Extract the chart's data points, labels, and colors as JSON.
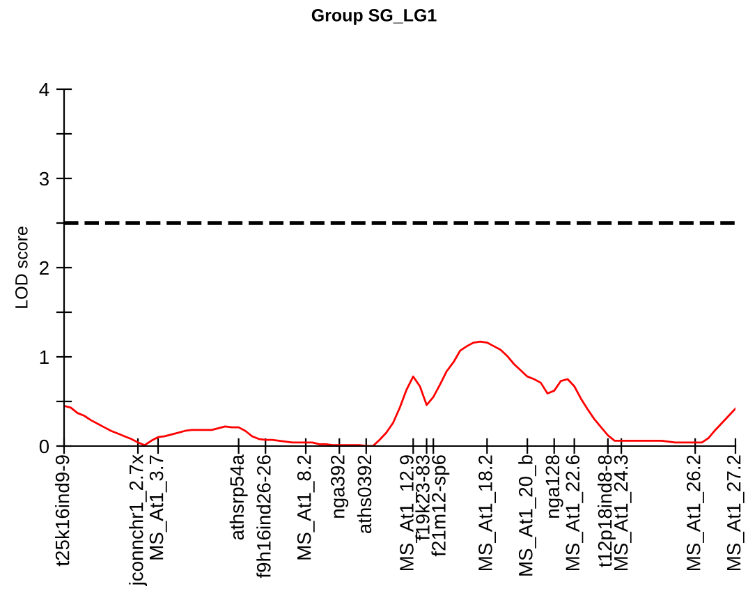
{
  "chart_data": {
    "type": "line",
    "title": "Group SG_LG1",
    "ylabel": "LOD score",
    "categories": [
      "t25k16ind9-9",
      null,
      null,
      null,
      null,
      null,
      null,
      null,
      null,
      null,
      null,
      "jconnchr1_2.7x",
      null,
      null,
      "MS_At1_3.7",
      null,
      null,
      null,
      null,
      null,
      null,
      null,
      null,
      null,
      null,
      null,
      "athsrp54a",
      null,
      null,
      null,
      "f9h16ind26-26",
      null,
      null,
      null,
      null,
      null,
      "MS_At1_8.2",
      null,
      null,
      null,
      null,
      "nga392",
      null,
      null,
      null,
      "aths0392",
      null,
      null,
      null,
      null,
      null,
      null,
      "MS_At1_12.9",
      null,
      "f19k23-83",
      "f21m12-sp6",
      null,
      null,
      null,
      null,
      null,
      null,
      null,
      "MS_At1_18.2",
      null,
      null,
      null,
      null,
      null,
      "MS_At1_20_b",
      null,
      null,
      null,
      "nga128",
      null,
      null,
      "MS_At1_22.6",
      null,
      null,
      null,
      null,
      "t12p18ind8-8",
      null,
      "MS_At1_24.3",
      null,
      null,
      null,
      null,
      null,
      null,
      null,
      null,
      null,
      null,
      "MS_At1_26.2",
      null,
      null,
      null,
      null,
      null,
      "MS_At1_27.2"
    ],
    "ylim": [
      0,
      4
    ],
    "yticks": [
      0,
      {
        "value": 0.5,
        "label": null
      },
      1,
      {
        "value": 1.5,
        "label": null
      },
      2,
      {
        "value": 2.5,
        "label": null
      },
      3,
      {
        "value": 3.5,
        "label": null
      },
      4
    ],
    "grid": false,
    "legend": false,
    "marker": "none",
    "line_style": "solid",
    "ref_lines": [
      {
        "axis": "y",
        "value": 2.5,
        "label": null,
        "color": "#000000",
        "line_style": "dashed"
      }
    ],
    "series": [
      {
        "color": "#ff0000",
        "values": [
          0.45,
          0.43,
          0.37,
          0.34,
          0.29,
          0.25,
          0.21,
          0.17,
          0.14,
          0.11,
          0.08,
          0.04,
          0.01,
          0.06,
          0.1,
          0.11,
          0.13,
          0.15,
          0.17,
          0.18,
          0.18,
          0.18,
          0.18,
          0.2,
          0.22,
          0.21,
          0.21,
          0.17,
          0.11,
          0.08,
          0.07,
          0.07,
          0.06,
          0.05,
          0.04,
          0.04,
          0.04,
          0.04,
          0.02,
          0.02,
          0.01,
          0.01,
          0.01,
          0.01,
          0.01,
          0,
          0,
          0.07,
          0.15,
          0.26,
          0.43,
          0.63,
          0.78,
          0.67,
          0.46,
          0.55,
          0.69,
          0.84,
          0.94,
          1.07,
          1.12,
          1.16,
          1.17,
          1.16,
          1.12,
          1.08,
          1.01,
          0.92,
          0.85,
          0.78,
          0.75,
          0.71,
          0.59,
          0.62,
          0.73,
          0.75,
          0.67,
          0.53,
          0.41,
          0.3,
          0.21,
          0.12,
          0.06,
          0.06,
          0.06,
          0.06,
          0.06,
          0.06,
          0.06,
          0.06,
          0.05,
          0.04,
          0.04,
          0.04,
          0.04,
          0.04,
          0.09,
          0.18,
          0.26,
          0.34,
          0.42
        ]
      }
    ]
  }
}
